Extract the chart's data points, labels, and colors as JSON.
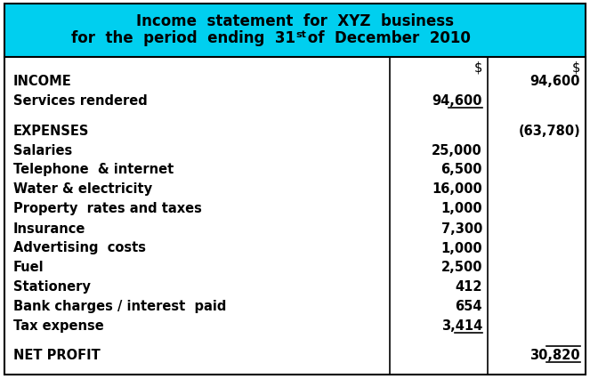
{
  "title_line1": "Income  statement  for  XYZ  business",
  "title_line2_part1": "for  the  period  ending  31",
  "title_line2_super": "st",
  "title_line2_part2": " of  December  2010",
  "header_bg": "#00CFEF",
  "table_bg": "#FFFFFF",
  "border_color": "#000000",
  "col2_header": "$",
  "col3_header": "$",
  "rows": [
    {
      "label": "INCOME",
      "col2": "",
      "col3": "94,600",
      "bold": true,
      "ul2": false,
      "ul3": false,
      "spacer": false
    },
    {
      "label": "Services rendered",
      "col2": "94,600",
      "col3": "",
      "bold": false,
      "ul2": true,
      "ul3": false,
      "spacer": false
    },
    {
      "label": "",
      "col2": "",
      "col3": "",
      "bold": false,
      "ul2": false,
      "ul3": false,
      "spacer": true
    },
    {
      "label": "EXPENSES",
      "col2": "",
      "col3": "(63,780)",
      "bold": true,
      "ul2": false,
      "ul3": false,
      "spacer": false
    },
    {
      "label": "Salaries",
      "col2": "25,000",
      "col3": "",
      "bold": false,
      "ul2": false,
      "ul3": false,
      "spacer": false
    },
    {
      "label": "Telephone  & internet",
      "col2": "6,500",
      "col3": "",
      "bold": false,
      "ul2": false,
      "ul3": false,
      "spacer": false
    },
    {
      "label": "Water & electricity",
      "col2": "16,000",
      "col3": "",
      "bold": false,
      "ul2": false,
      "ul3": false,
      "spacer": false
    },
    {
      "label": "Property  rates and taxes",
      "col2": "1,000",
      "col3": "",
      "bold": false,
      "ul2": false,
      "ul3": false,
      "spacer": false
    },
    {
      "label": "Insurance",
      "col2": "7,300",
      "col3": "",
      "bold": false,
      "ul2": false,
      "ul3": false,
      "spacer": false
    },
    {
      "label": "Advertising  costs",
      "col2": "1,000",
      "col3": "",
      "bold": false,
      "ul2": false,
      "ul3": false,
      "spacer": false
    },
    {
      "label": "Fuel",
      "col2": "2,500",
      "col3": "",
      "bold": false,
      "ul2": false,
      "ul3": false,
      "spacer": false
    },
    {
      "label": "Stationery",
      "col2": "412",
      "col3": "",
      "bold": false,
      "ul2": false,
      "ul3": false,
      "spacer": false
    },
    {
      "label": "Bank charges / interest  paid",
      "col2": "654",
      "col3": "",
      "bold": false,
      "ul2": false,
      "ul3": false,
      "spacer": false
    },
    {
      "label": "Tax expense",
      "col2": "3,414",
      "col3": "",
      "bold": false,
      "ul2": true,
      "ul3": false,
      "spacer": false
    },
    {
      "label": "",
      "col2": "",
      "col3": "",
      "bold": false,
      "ul2": false,
      "ul3": false,
      "spacer": true
    },
    {
      "label": "NET PROFIT",
      "col2": "",
      "col3": "30,820",
      "bold": true,
      "ul2": false,
      "ul3": true,
      "spacer": false
    }
  ],
  "font_size": 10.5,
  "title_font_size": 12.0,
  "fig_w": 6.63,
  "fig_h": 4.27,
  "dpi": 100
}
